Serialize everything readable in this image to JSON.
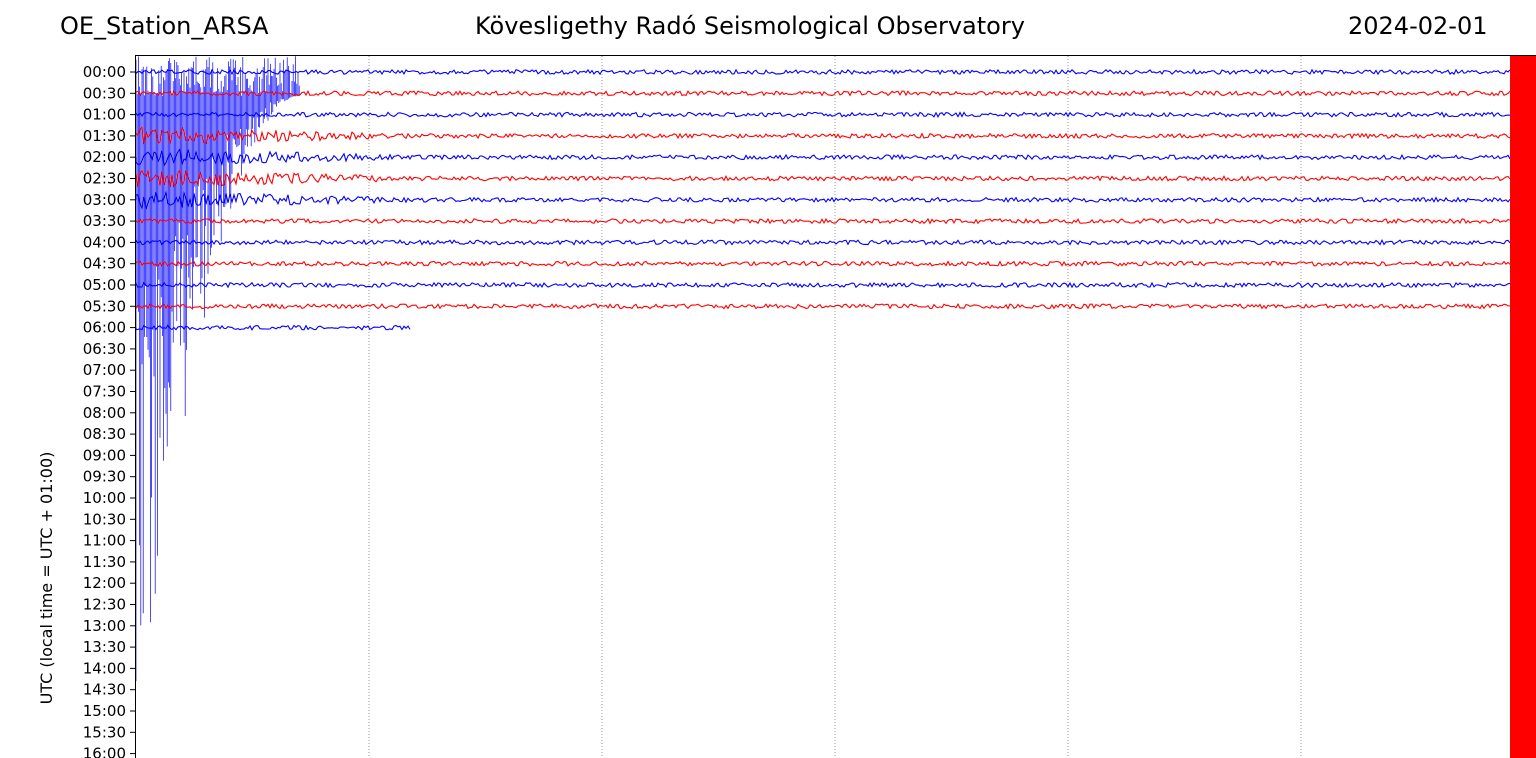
{
  "header": {
    "station": "OE_Station_ARSA",
    "observatory": "Kövesligethy Radó Seismological Observatory",
    "date": "2024-02-01"
  },
  "chart_data": {
    "type": "line",
    "title": "Kövesligethy Radó Seismological Observatory",
    "ylabel": "UTC (local time = UTC + 01:00)",
    "xlabel": "",
    "y_tick_labels": [
      "00:00",
      "00:30",
      "01:00",
      "01:30",
      "02:00",
      "02:30",
      "03:00",
      "03:30",
      "04:00",
      "04:30",
      "05:00",
      "05:30",
      "06:00",
      "06:30",
      "07:00",
      "07:30",
      "08:00",
      "08:30",
      "09:00",
      "09:30",
      "10:00",
      "10:30",
      "11:00",
      "11:30",
      "12:00",
      "12:30",
      "13:00",
      "13:30",
      "14:00",
      "14:30",
      "15:00",
      "15:30",
      "16:00"
    ],
    "series": [
      {
        "row": "00:00",
        "color": "#0000ff",
        "data_extent": 1.0
      },
      {
        "row": "00:30",
        "color": "#ff0000",
        "data_extent": 1.0
      },
      {
        "row": "01:00",
        "color": "#0000ff",
        "data_extent": 1.0
      },
      {
        "row": "01:30",
        "color": "#ff0000",
        "data_extent": 1.0
      },
      {
        "row": "02:00",
        "color": "#0000ff",
        "data_extent": 1.0
      },
      {
        "row": "02:30",
        "color": "#ff0000",
        "data_extent": 1.0
      },
      {
        "row": "03:00",
        "color": "#0000ff",
        "data_extent": 1.0
      },
      {
        "row": "03:30",
        "color": "#ff0000",
        "data_extent": 1.0
      },
      {
        "row": "04:00",
        "color": "#0000ff",
        "data_extent": 1.0
      },
      {
        "row": "04:30",
        "color": "#ff0000",
        "data_extent": 1.0
      },
      {
        "row": "05:00",
        "color": "#0000ff",
        "data_extent": 1.0
      },
      {
        "row": "05:30",
        "color": "#ff0000",
        "data_extent": 1.0
      },
      {
        "row": "06:00",
        "color": "#0000ff",
        "data_extent": 0.2
      }
    ],
    "grid": "vertical dotted",
    "colors": {
      "trace_a": "#0000ff",
      "trace_b": "#ff0000"
    }
  }
}
